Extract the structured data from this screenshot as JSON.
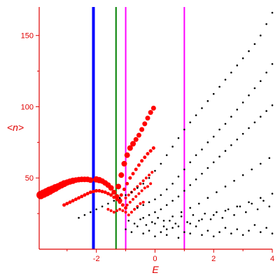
{
  "chart_data": {
    "type": "scatter",
    "title": "",
    "xlabel": "E",
    "ylabel": "<n>",
    "xlim": [
      -3.95,
      4
    ],
    "ylim": [
      0,
      170
    ],
    "xticks": [
      -2,
      0,
      2,
      4
    ],
    "yticks": [
      50,
      100,
      150
    ],
    "grid": false,
    "colors": {
      "axis": "#e00000",
      "red_points": "#ff0000",
      "black_points": "#000000",
      "line_blue": "#0000ff",
      "line_green": "#008000",
      "line_magenta": "#ff00ff"
    },
    "vlines": [
      {
        "x": -2.1,
        "color": "#0000ff",
        "width": 4
      },
      {
        "x": -1.33,
        "color": "#008000",
        "width": 2
      },
      {
        "x": -1.0,
        "color": "#ff00ff",
        "width": 2
      },
      {
        "x": 1.0,
        "color": "#ff00ff",
        "width": 2
      }
    ],
    "series": [
      {
        "points": [
          [
            -3.9,
            38
          ],
          [
            -3.8,
            39
          ],
          [
            -3.7,
            40
          ],
          [
            -3.6,
            41
          ],
          [
            -3.5,
            42
          ],
          [
            -3.4,
            43
          ],
          [
            -3.3,
            44
          ],
          [
            -3.2,
            45
          ],
          [
            -3.1,
            46
          ],
          [
            -3.0,
            46.8
          ],
          [
            -2.9,
            47.5
          ],
          [
            -2.8,
            48
          ],
          [
            -2.7,
            48.5
          ],
          [
            -2.6,
            48.8
          ],
          [
            -2.5,
            49
          ],
          [
            -2.4,
            49
          ],
          [
            -2.3,
            49
          ],
          [
            -2.2,
            48.5
          ],
          [
            -2.0,
            49
          ],
          [
            -1.9,
            48.5
          ],
          [
            -1.8,
            47.8
          ],
          [
            -1.7,
            46.5
          ],
          [
            -1.6,
            45
          ],
          [
            -1.5,
            43
          ],
          [
            -1.4,
            40
          ],
          [
            -1.3,
            37
          ],
          [
            -1.2,
            34
          ],
          [
            -1.25,
            44
          ],
          [
            -1.15,
            52
          ],
          [
            -1.05,
            60
          ],
          [
            -0.95,
            66
          ],
          [
            -0.85,
            71
          ],
          [
            -0.75,
            74
          ],
          [
            -0.65,
            77
          ],
          [
            -0.55,
            80
          ],
          [
            -0.45,
            84
          ],
          [
            -0.35,
            88
          ],
          [
            -0.25,
            92
          ],
          [
            -0.15,
            96
          ],
          [
            -0.05,
            99
          ]
        ],
        "sizes": [
          6,
          6,
          6,
          6,
          5.5,
          5.5,
          5,
          5,
          5,
          4.5,
          4.5,
          4.5,
          4,
          4,
          4,
          4,
          4,
          4,
          4.5,
          4.5,
          4,
          4,
          4,
          4,
          3.5,
          3.5,
          3.5,
          4,
          4,
          4,
          4,
          4,
          4,
          3.5,
          3.5,
          3.5,
          3.5,
          3.5,
          3.5,
          3.5
        ],
        "color": "#ff0000"
      },
      {
        "points": [
          [
            -3.1,
            31
          ],
          [
            -3.0,
            32
          ],
          [
            -2.9,
            33
          ],
          [
            -2.8,
            34
          ],
          [
            -2.7,
            35
          ],
          [
            -2.6,
            36
          ],
          [
            -2.5,
            37
          ],
          [
            -2.4,
            38
          ],
          [
            -2.3,
            39
          ],
          [
            -2.2,
            40
          ],
          [
            -2.1,
            40.5
          ],
          [
            -2.0,
            41
          ],
          [
            -1.9,
            41
          ],
          [
            -1.8,
            40.5
          ],
          [
            -1.7,
            40
          ],
          [
            -1.6,
            39
          ],
          [
            -1.5,
            38
          ],
          [
            -1.4,
            36.5
          ],
          [
            -1.3,
            35
          ],
          [
            -1.2,
            33
          ],
          [
            -1.1,
            31
          ],
          [
            -1.0,
            29
          ],
          [
            -1.15,
            38
          ],
          [
            -1.05,
            42
          ],
          [
            -0.95,
            46
          ],
          [
            -0.85,
            50
          ],
          [
            -0.75,
            53
          ],
          [
            -0.65,
            56
          ],
          [
            -0.55,
            59
          ],
          [
            -0.45,
            62
          ],
          [
            -0.35,
            64.5
          ],
          [
            -0.25,
            67
          ],
          [
            -0.15,
            69
          ],
          [
            -0.05,
            71
          ]
        ],
        "sizes": [
          2.5,
          2.5,
          2.5,
          2.5,
          2.5,
          2.5,
          2.5,
          2.5,
          2.5,
          2.5,
          2.5,
          2.5,
          2.5,
          2.5,
          2.5,
          2.5,
          2.5,
          2.5,
          2.5,
          2.5,
          2.5,
          2.5,
          2.5,
          2.5,
          2.5,
          2.5,
          2.5,
          2.5,
          2.5,
          2.5,
          2.5,
          2.5,
          2.5,
          2.5
        ],
        "color": "#ff0000"
      },
      {
        "points": [
          [
            -1.0,
            36
          ],
          [
            -0.9,
            38
          ],
          [
            -0.8,
            40
          ],
          [
            -0.7,
            42
          ],
          [
            -0.6,
            44
          ],
          [
            -0.5,
            46
          ],
          [
            -0.4,
            48
          ],
          [
            -0.3,
            50
          ],
          [
            -0.2,
            52
          ],
          [
            -0.1,
            54
          ],
          [
            -0.95,
            31
          ],
          [
            -0.85,
            33
          ],
          [
            -0.75,
            35
          ],
          [
            -0.65,
            37
          ],
          [
            -0.55,
            39
          ],
          [
            -0.45,
            41
          ],
          [
            -0.35,
            43
          ],
          [
            -0.25,
            44
          ],
          [
            -0.15,
            46
          ],
          [
            -0.9,
            24
          ],
          [
            -0.8,
            26
          ],
          [
            -0.7,
            28
          ],
          [
            -0.6,
            30
          ],
          [
            -0.5,
            32
          ],
          [
            -0.4,
            33
          ],
          [
            -1.6,
            28
          ],
          [
            -1.5,
            27
          ],
          [
            -1.4,
            26
          ],
          [
            -1.3,
            27
          ],
          [
            -1.2,
            28
          ],
          [
            -1.1,
            27
          ],
          [
            -1.0,
            26
          ]
        ],
        "sizes": [
          2,
          2,
          2,
          2,
          2,
          2,
          2,
          2,
          2,
          2,
          2,
          2,
          2,
          2,
          2,
          2,
          2,
          2,
          2,
          2,
          2,
          2,
          2,
          2,
          2,
          2,
          2,
          2,
          2,
          2,
          2,
          2
        ],
        "color": "#ff0000"
      },
      {
        "points": [
          [
            -2.6,
            22
          ],
          [
            -2.4,
            24
          ],
          [
            -2.2,
            26
          ],
          [
            -2.0,
            28
          ],
          [
            -1.8,
            30
          ],
          [
            -1.6,
            32
          ],
          [
            -1.4,
            34
          ],
          [
            -1.2,
            36
          ],
          [
            -1.0,
            38
          ],
          [
            -0.8,
            40
          ],
          [
            -0.6,
            43
          ],
          [
            -0.4,
            46
          ],
          [
            -0.2,
            50
          ],
          [
            0.0,
            55
          ],
          [
            0.2,
            60
          ],
          [
            0.4,
            66
          ],
          [
            0.6,
            72
          ],
          [
            0.8,
            78
          ],
          [
            1.0,
            84
          ],
          [
            1.2,
            89
          ],
          [
            1.4,
            94
          ],
          [
            1.6,
            99
          ],
          [
            1.8,
            104
          ],
          [
            2.0,
            109
          ],
          [
            2.2,
            114
          ],
          [
            2.4,
            119
          ],
          [
            2.6,
            124
          ],
          [
            2.8,
            129
          ],
          [
            3.0,
            134
          ],
          [
            3.2,
            139
          ],
          [
            3.4,
            144
          ],
          [
            3.6,
            150
          ],
          [
            3.8,
            158
          ],
          [
            4.0,
            166
          ],
          [
            -0.6,
            29
          ],
          [
            -0.4,
            31
          ],
          [
            -0.2,
            33
          ],
          [
            0.0,
            35
          ],
          [
            0.2,
            38
          ],
          [
            0.4,
            42
          ],
          [
            0.6,
            46
          ],
          [
            0.8,
            51
          ],
          [
            1.0,
            56
          ],
          [
            1.2,
            61
          ],
          [
            1.4,
            66
          ],
          [
            1.6,
            70
          ],
          [
            1.8,
            75
          ],
          [
            2.0,
            79
          ],
          [
            2.2,
            84
          ],
          [
            2.4,
            88
          ],
          [
            2.6,
            93
          ],
          [
            2.8,
            98
          ],
          [
            3.0,
            103
          ],
          [
            3.2,
            108
          ],
          [
            3.4,
            113
          ],
          [
            3.6,
            118
          ],
          [
            3.8,
            124
          ],
          [
            4.0,
            130
          ],
          [
            -0.4,
            22
          ],
          [
            -0.2,
            24
          ],
          [
            0.0,
            26
          ],
          [
            0.2,
            28
          ],
          [
            0.4,
            31
          ],
          [
            0.6,
            34
          ],
          [
            0.8,
            37
          ],
          [
            1.0,
            41
          ],
          [
            1.2,
            45
          ],
          [
            1.4,
            49
          ],
          [
            1.6,
            53
          ],
          [
            1.8,
            57
          ],
          [
            2.0,
            61
          ],
          [
            2.2,
            65
          ],
          [
            2.4,
            69
          ],
          [
            2.6,
            73
          ],
          [
            2.8,
            77
          ],
          [
            3.0,
            81
          ],
          [
            3.2,
            85
          ],
          [
            3.4,
            89
          ],
          [
            3.6,
            93
          ],
          [
            3.8,
            97
          ],
          [
            4.0,
            101
          ],
          [
            0.0,
            18
          ],
          [
            0.3,
            20
          ],
          [
            0.6,
            23
          ],
          [
            0.9,
            26
          ],
          [
            1.2,
            29
          ],
          [
            1.5,
            32
          ],
          [
            1.8,
            36
          ],
          [
            2.1,
            40
          ],
          [
            2.4,
            44
          ],
          [
            2.7,
            48
          ],
          [
            3.0,
            52
          ],
          [
            3.3,
            56
          ],
          [
            3.6,
            60
          ],
          [
            3.9,
            64
          ],
          [
            0.4,
            14
          ],
          [
            0.8,
            16
          ],
          [
            1.2,
            18
          ],
          [
            1.6,
            21
          ],
          [
            2.0,
            24
          ],
          [
            2.4,
            27
          ],
          [
            2.8,
            30
          ],
          [
            3.2,
            33
          ],
          [
            3.6,
            36
          ],
          [
            4.0,
            39
          ],
          [
            -1.0,
            14
          ],
          [
            -0.8,
            12
          ],
          [
            -0.6,
            16
          ],
          [
            -0.4,
            11
          ],
          [
            -0.2,
            13
          ],
          [
            0.0,
            9
          ],
          [
            0.2,
            12
          ],
          [
            0.4,
            10
          ],
          [
            0.6,
            15
          ],
          [
            0.8,
            8
          ],
          [
            1.0,
            12
          ],
          [
            1.2,
            11
          ],
          [
            1.4,
            16
          ],
          [
            1.6,
            10
          ],
          [
            1.8,
            13
          ],
          [
            2.0,
            9
          ],
          [
            2.2,
            12
          ],
          [
            2.4,
            15
          ],
          [
            2.6,
            11
          ],
          [
            2.8,
            14
          ],
          [
            3.0,
            10
          ],
          [
            3.2,
            13
          ],
          [
            3.4,
            17
          ],
          [
            3.6,
            12
          ],
          [
            3.8,
            15
          ],
          [
            4.0,
            11
          ],
          [
            -0.9,
            20
          ],
          [
            -0.7,
            18
          ],
          [
            -0.5,
            21
          ],
          [
            -0.3,
            17
          ],
          [
            -0.1,
            19
          ],
          [
            0.1,
            22
          ],
          [
            0.3,
            16
          ],
          [
            0.5,
            20
          ],
          [
            0.7,
            18
          ],
          [
            0.9,
            23
          ],
          [
            1.1,
            19
          ],
          [
            1.3,
            24
          ],
          [
            1.5,
            20
          ],
          [
            1.7,
            25
          ],
          [
            1.9,
            21
          ],
          [
            2.1,
            26
          ],
          [
            2.3,
            22
          ],
          [
            2.5,
            28
          ],
          [
            2.7,
            24
          ],
          [
            2.9,
            30
          ],
          [
            3.1,
            26
          ],
          [
            3.3,
            32
          ],
          [
            3.5,
            28
          ],
          [
            3.7,
            34
          ],
          [
            3.9,
            30
          ]
        ],
        "sizes": [
          1.3
        ],
        "color": "#000000"
      }
    ]
  }
}
